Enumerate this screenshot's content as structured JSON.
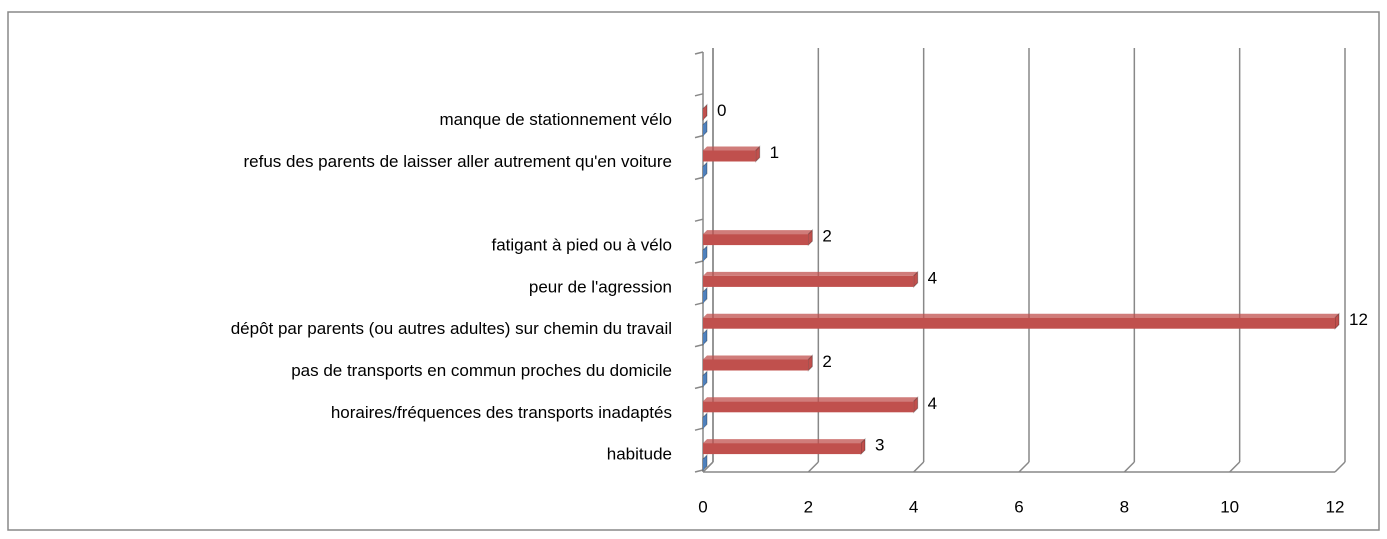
{
  "chart_data": {
    "type": "bar",
    "orientation": "horizontal",
    "categories": [
      "habitude",
      "horaires/fréquences des transports inadaptés",
      "pas de transports en commun proches du domicile",
      "dépôt par parents (ou autres adultes) sur chemin du travail",
      "peur de l'agression",
      "fatigant à pied ou à vélo",
      null,
      "refus des parents de laisser aller autrement qu'en voiture",
      "manque de stationnement vélo",
      null
    ],
    "series": [
      {
        "color": "#4f81bd",
        "values": [
          0,
          0,
          0,
          0,
          0,
          0,
          null,
          0,
          0,
          null
        ],
        "show_labels": false
      },
      {
        "color": "#c0504d",
        "values": [
          3,
          4,
          2,
          12,
          4,
          2,
          null,
          1,
          0,
          null
        ],
        "show_labels": true
      }
    ],
    "xlim": [
      0,
      12
    ],
    "xticks": [
      0,
      2,
      4,
      6,
      8,
      10,
      12
    ],
    "grid": true
  }
}
